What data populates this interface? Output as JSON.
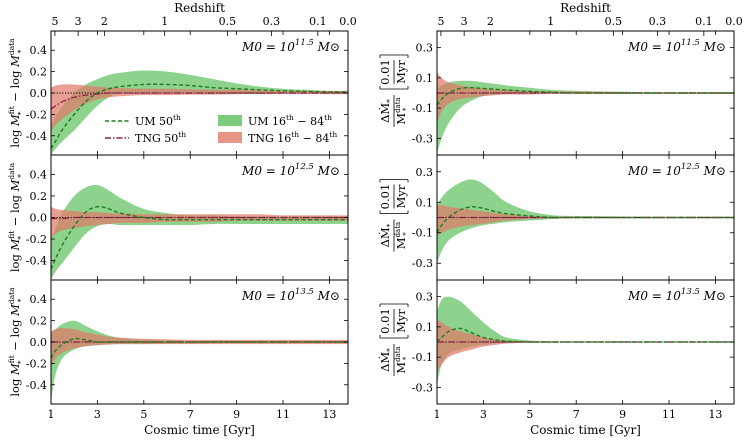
{
  "chart_data": {
    "type": "area",
    "figure": {
      "top_axis_title": "Redshift",
      "x_axis_title": "Cosmic time [Gyr]",
      "xlim": [
        1,
        13.8
      ],
      "x_ticks": [
        1,
        3,
        5,
        7,
        9,
        11,
        13
      ],
      "redshift_ticks": [
        {
          "label": "5",
          "t": 1.17
        },
        {
          "label": "3",
          "t": 2.17
        },
        {
          "label": "2",
          "t": 3.3
        },
        {
          "label": "1",
          "t": 5.9
        },
        {
          "label": "0.5",
          "t": 8.6
        },
        {
          "label": "0.3",
          "t": 10.5
        },
        {
          "label": "0.1",
          "t": 12.5
        },
        {
          "label": "0.0",
          "t": 13.8
        }
      ]
    },
    "legend": {
      "placement": "lower-center",
      "entries": [
        {
          "label": "UM 50th",
          "base": "UM 50",
          "sup": "th",
          "style": "dashed",
          "color": "#1e7d1e"
        },
        {
          "label": "UM 16th - 84th",
          "base": "UM 16",
          "sup": "th",
          "mid": " − 84",
          "sup2": "th",
          "style": "patch",
          "color": "#5cbf5c"
        },
        {
          "label": "TNG 50th",
          "base": "TNG 50",
          "sup": "th",
          "style": "dashdot",
          "color": "#8b2050"
        },
        {
          "label": "TNG 16th - 84th",
          "base": "TNG 16",
          "sup": "th",
          "mid": " − 84",
          "sup2": "th",
          "style": "patch",
          "color": "#e07a6a"
        }
      ]
    },
    "left_ylabel": "log M*fit − log M*data",
    "right_ylabel": "ΔṀ* / M*data [0.01 / Myr]",
    "colors": {
      "um_band": "#5cbf5c",
      "tng_band": "#e07a6a",
      "um_line": "#1e7d1e",
      "tng_line": "#8b2050"
    },
    "t": [
      1.0,
      1.2,
      1.5,
      2.0,
      2.5,
      3.0,
      3.5,
      4.0,
      5.0,
      6.0,
      7.0,
      8.0,
      9.0,
      10.0,
      11.0,
      12.0,
      13.0,
      13.8
    ],
    "panels": [
      {
        "column": "left",
        "row": 1,
        "label_base": "M0 = 10",
        "label_exp": "11.5",
        "label_unit": "M⊙",
        "ylim": [
          -0.58,
          0.58
        ],
        "yticks": [
          -0.4,
          -0.2,
          0.0,
          0.2,
          0.4
        ],
        "um_median": [
          -0.52,
          -0.45,
          -0.34,
          -0.2,
          -0.08,
          0.0,
          0.04,
          0.06,
          0.08,
          0.08,
          0.07,
          0.05,
          0.04,
          0.03,
          0.02,
          0.015,
          0.01,
          0.01
        ],
        "um_lo": [
          -0.58,
          -0.52,
          -0.45,
          -0.35,
          -0.23,
          -0.12,
          -0.04,
          0.0,
          0.01,
          0.0,
          -0.01,
          -0.01,
          -0.01,
          -0.01,
          -0.005,
          -0.005,
          0.0,
          0.0
        ],
        "um_hi": [
          -0.3,
          -0.22,
          -0.12,
          0.0,
          0.08,
          0.13,
          0.17,
          0.19,
          0.21,
          0.2,
          0.17,
          0.13,
          0.09,
          0.06,
          0.04,
          0.03,
          0.02,
          0.02
        ],
        "tng_median": [
          -0.15,
          -0.12,
          -0.08,
          -0.04,
          -0.02,
          -0.01,
          0.0,
          0.0,
          0.0,
          0.0,
          0.0,
          0.0,
          0.0,
          0.0,
          0.0,
          0.0,
          0.0,
          0.0
        ],
        "tng_lo": [
          -0.35,
          -0.3,
          -0.24,
          -0.16,
          -0.1,
          -0.06,
          -0.04,
          -0.03,
          -0.02,
          -0.02,
          -0.015,
          -0.015,
          -0.01,
          -0.01,
          -0.01,
          -0.01,
          -0.01,
          -0.01
        ],
        "tng_hi": [
          0.05,
          0.07,
          0.08,
          0.08,
          0.07,
          0.06,
          0.05,
          0.045,
          0.04,
          0.04,
          0.035,
          0.03,
          0.03,
          0.025,
          0.02,
          0.02,
          0.02,
          0.02
        ]
      },
      {
        "column": "left",
        "row": 2,
        "label_base": "M0 = 10",
        "label_exp": "12.5",
        "label_unit": "M⊙",
        "ylim": [
          -0.58,
          0.58
        ],
        "yticks": [
          -0.4,
          -0.2,
          0.0,
          0.2,
          0.4
        ],
        "um_median": [
          -0.48,
          -0.38,
          -0.25,
          -0.08,
          0.05,
          0.1,
          0.08,
          0.04,
          0.0,
          -0.02,
          -0.02,
          -0.02,
          -0.02,
          -0.02,
          -0.02,
          -0.02,
          -0.02,
          -0.02
        ],
        "um_lo": [
          -0.58,
          -0.5,
          -0.42,
          -0.28,
          -0.15,
          -0.08,
          -0.06,
          -0.07,
          -0.07,
          -0.07,
          -0.07,
          -0.06,
          -0.06,
          -0.06,
          -0.06,
          -0.06,
          -0.06,
          -0.06
        ],
        "um_hi": [
          -0.2,
          -0.1,
          0.05,
          0.2,
          0.28,
          0.3,
          0.25,
          0.18,
          0.08,
          0.04,
          0.02,
          0.02,
          0.01,
          0.01,
          0.01,
          0.01,
          0.01,
          0.01
        ],
        "tng_median": [
          -0.01,
          -0.01,
          -0.01,
          0.0,
          0.0,
          0.0,
          0.0,
          0.0,
          0.0,
          0.0,
          0.0,
          0.0,
          0.0,
          0.0,
          0.0,
          0.0,
          0.0,
          0.0
        ],
        "tng_lo": [
          -0.2,
          -0.15,
          -0.12,
          -0.1,
          -0.08,
          -0.07,
          -0.06,
          -0.05,
          -0.05,
          -0.04,
          -0.04,
          -0.04,
          -0.03,
          -0.03,
          -0.03,
          -0.03,
          -0.03,
          -0.03
        ],
        "tng_hi": [
          0.1,
          0.08,
          0.07,
          0.06,
          0.05,
          0.05,
          0.04,
          0.04,
          0.03,
          0.03,
          0.03,
          0.03,
          0.03,
          0.03,
          0.02,
          0.02,
          0.02,
          0.02
        ]
      },
      {
        "column": "left",
        "row": 3,
        "label_base": "M0 = 10",
        "label_exp": "13.5",
        "label_unit": "M⊙",
        "ylim": [
          -0.58,
          0.58
        ],
        "yticks": [
          -0.4,
          -0.2,
          0.0,
          0.2,
          0.4
        ],
        "um_median": [
          -0.15,
          -0.08,
          -0.02,
          0.03,
          0.02,
          0.0,
          0.0,
          0.0,
          0.0,
          0.0,
          0.0,
          0.0,
          0.0,
          0.0,
          0.0,
          0.0,
          0.0,
          0.0
        ],
        "um_lo": [
          -0.55,
          -0.3,
          -0.15,
          -0.07,
          -0.04,
          -0.03,
          -0.02,
          -0.02,
          -0.02,
          -0.015,
          -0.015,
          -0.01,
          -0.01,
          -0.01,
          -0.01,
          -0.01,
          -0.01,
          -0.01
        ],
        "um_hi": [
          0.08,
          0.12,
          0.17,
          0.2,
          0.15,
          0.1,
          0.06,
          0.04,
          0.02,
          0.015,
          0.01,
          0.01,
          0.01,
          0.01,
          0.01,
          0.01,
          0.01,
          0.01
        ],
        "tng_median": [
          0.0,
          0.0,
          0.0,
          0.0,
          0.0,
          0.0,
          0.0,
          0.0,
          0.0,
          0.0,
          0.0,
          0.0,
          0.0,
          0.0,
          0.0,
          0.0,
          0.0,
          0.0
        ],
        "tng_lo": [
          -0.25,
          -0.15,
          -0.1,
          -0.06,
          -0.04,
          -0.03,
          -0.025,
          -0.02,
          -0.02,
          -0.02,
          -0.02,
          -0.02,
          -0.02,
          -0.02,
          -0.02,
          -0.02,
          -0.02,
          -0.02
        ],
        "tng_hi": [
          0.1,
          0.12,
          0.13,
          0.12,
          0.09,
          0.07,
          0.05,
          0.04,
          0.03,
          0.025,
          0.02,
          0.02,
          0.02,
          0.02,
          0.02,
          0.02,
          0.02,
          0.02
        ]
      },
      {
        "column": "right",
        "row": 1,
        "label_base": "M0 = 10",
        "label_exp": "11.5",
        "label_unit": "M⊙",
        "ylim": [
          -0.41,
          0.41
        ],
        "yticks": [
          -0.3,
          -0.1,
          0.1,
          0.3
        ],
        "um_median": [
          -0.08,
          -0.04,
          0.0,
          0.03,
          0.035,
          0.03,
          0.025,
          0.02,
          0.01,
          0.005,
          0.0,
          0.0,
          0.0,
          0.0,
          0.0,
          0.0,
          0.0,
          0.0
        ],
        "um_lo": [
          -0.4,
          -0.3,
          -0.2,
          -0.1,
          -0.05,
          -0.02,
          -0.01,
          -0.005,
          0.0,
          -0.005,
          -0.005,
          -0.005,
          -0.005,
          -0.005,
          -0.005,
          -0.005,
          -0.005,
          -0.005
        ],
        "um_hi": [
          0.03,
          0.05,
          0.07,
          0.08,
          0.08,
          0.07,
          0.06,
          0.05,
          0.035,
          0.02,
          0.015,
          0.01,
          0.008,
          0.006,
          0.005,
          0.005,
          0.005,
          0.005
        ],
        "tng_median": [
          0.0,
          0.0,
          0.0,
          0.0,
          0.0,
          0.0,
          0.0,
          0.0,
          0.0,
          0.0,
          0.0,
          0.0,
          0.0,
          0.0,
          0.0,
          0.0,
          0.0,
          0.0
        ],
        "tng_lo": [
          -0.2,
          -0.12,
          -0.07,
          -0.04,
          -0.03,
          -0.02,
          -0.015,
          -0.01,
          -0.01,
          -0.005,
          -0.005,
          -0.005,
          -0.005,
          -0.005,
          -0.005,
          -0.005,
          -0.005,
          -0.005
        ],
        "tng_hi": [
          0.14,
          0.1,
          0.07,
          0.05,
          0.04,
          0.03,
          0.025,
          0.02,
          0.015,
          0.01,
          0.01,
          0.008,
          0.006,
          0.005,
          0.005,
          0.005,
          0.005,
          0.005
        ]
      },
      {
        "column": "right",
        "row": 2,
        "label_base": "M0 = 10",
        "label_exp": "12.5",
        "label_unit": "M⊙",
        "ylim": [
          -0.41,
          0.41
        ],
        "yticks": [
          -0.3,
          -0.1,
          0.1,
          0.3
        ],
        "um_median": [
          -0.1,
          -0.05,
          0.0,
          0.05,
          0.07,
          0.06,
          0.04,
          0.025,
          0.01,
          0.0,
          0.0,
          0.0,
          0.0,
          0.0,
          0.0,
          0.0,
          0.0,
          0.0
        ],
        "um_lo": [
          -0.3,
          -0.22,
          -0.15,
          -0.1,
          -0.07,
          -0.05,
          -0.04,
          -0.03,
          -0.02,
          -0.01,
          -0.005,
          -0.005,
          -0.005,
          -0.005,
          -0.005,
          -0.005,
          -0.005,
          -0.005
        ],
        "um_hi": [
          0.08,
          0.13,
          0.18,
          0.23,
          0.25,
          0.22,
          0.16,
          0.1,
          0.04,
          0.015,
          0.01,
          0.008,
          0.006,
          0.005,
          0.005,
          0.005,
          0.005,
          0.005
        ],
        "tng_median": [
          0.0,
          0.0,
          0.0,
          0.0,
          0.0,
          0.0,
          0.0,
          0.0,
          0.0,
          0.0,
          0.0,
          0.0,
          0.0,
          0.0,
          0.0,
          0.0,
          0.0,
          0.0
        ],
        "tng_lo": [
          -0.12,
          -0.1,
          -0.08,
          -0.06,
          -0.05,
          -0.04,
          -0.03,
          -0.02,
          -0.01,
          -0.005,
          -0.005,
          -0.005,
          -0.005,
          -0.005,
          -0.005,
          -0.005,
          -0.005,
          -0.005
        ],
        "tng_hi": [
          0.08,
          0.08,
          0.07,
          0.06,
          0.05,
          0.04,
          0.03,
          0.02,
          0.01,
          0.005,
          0.005,
          0.005,
          0.005,
          0.005,
          0.005,
          0.005,
          0.005,
          0.005
        ]
      },
      {
        "column": "right",
        "row": 3,
        "label_base": "M0 = 10",
        "label_exp": "13.5",
        "label_unit": "M⊙",
        "ylim": [
          -0.41,
          0.41
        ],
        "yticks": [
          -0.3,
          -0.1,
          0.1,
          0.3
        ],
        "um_median": [
          0.0,
          0.03,
          0.07,
          0.09,
          0.06,
          0.03,
          0.015,
          0.005,
          0.0,
          0.0,
          0.0,
          0.0,
          0.0,
          0.0,
          0.0,
          0.0,
          0.0,
          0.0
        ],
        "um_lo": [
          -0.28,
          -0.15,
          -0.08,
          -0.05,
          -0.03,
          -0.02,
          -0.01,
          -0.005,
          -0.003,
          -0.002,
          -0.002,
          -0.002,
          -0.002,
          -0.002,
          -0.002,
          -0.002,
          -0.002,
          -0.002
        ],
        "um_hi": [
          0.2,
          0.28,
          0.3,
          0.27,
          0.2,
          0.13,
          0.07,
          0.03,
          0.01,
          0.005,
          0.003,
          0.002,
          0.002,
          0.002,
          0.002,
          0.002,
          0.002,
          0.002
        ],
        "tng_median": [
          0.0,
          0.0,
          0.0,
          0.0,
          0.0,
          0.0,
          0.0,
          0.0,
          0.0,
          0.0,
          0.0,
          0.0,
          0.0,
          0.0,
          0.0,
          0.0,
          0.0,
          0.0
        ],
        "tng_lo": [
          -0.2,
          -0.15,
          -0.1,
          -0.07,
          -0.05,
          -0.03,
          -0.02,
          -0.01,
          -0.005,
          -0.003,
          -0.002,
          -0.002,
          -0.002,
          -0.002,
          -0.002,
          -0.002,
          -0.002,
          -0.002
        ],
        "tng_hi": [
          0.15,
          0.13,
          0.1,
          0.07,
          0.05,
          0.03,
          0.02,
          0.01,
          0.005,
          0.003,
          0.002,
          0.002,
          0.002,
          0.002,
          0.002,
          0.002,
          0.002,
          0.002
        ]
      }
    ]
  }
}
